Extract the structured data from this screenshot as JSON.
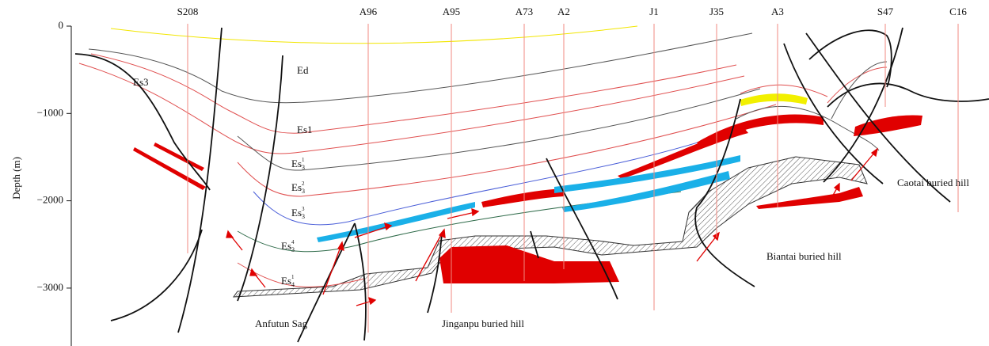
{
  "axis": {
    "label": "Depth (m)",
    "ticks": [
      {
        "value": 0,
        "label": "0"
      },
      {
        "value": -1000,
        "label": "−1000"
      },
      {
        "value": -2000,
        "label": "−2000"
      },
      {
        "value": -3000,
        "label": "−3000"
      }
    ]
  },
  "wells": [
    {
      "name": "S208"
    },
    {
      "name": "A96"
    },
    {
      "name": "A95"
    },
    {
      "name": "A73"
    },
    {
      "name": "A2"
    },
    {
      "name": "J1"
    },
    {
      "name": "J35"
    },
    {
      "name": "A3"
    },
    {
      "name": "S47"
    },
    {
      "name": "C16"
    }
  ],
  "layers": [
    {
      "text": "Es3"
    },
    {
      "text": "Ed"
    },
    {
      "text": "Es1"
    },
    {
      "text": "Es",
      "sub": "3",
      "sup": "1"
    },
    {
      "text": "Es",
      "sub": "3",
      "sup": "2"
    },
    {
      "text": "Es",
      "sub": "3",
      "sup": "3"
    },
    {
      "text": "Es",
      "sub": "3",
      "sup": "4"
    },
    {
      "text": "Es",
      "sub": "4",
      "sup": "1"
    }
  ],
  "regions": [
    {
      "label": "Anfutun Sag"
    },
    {
      "label": "Jinganpu buried hill"
    },
    {
      "label": "Biantai buried hill"
    },
    {
      "label": "Caotai buried hill"
    }
  ]
}
